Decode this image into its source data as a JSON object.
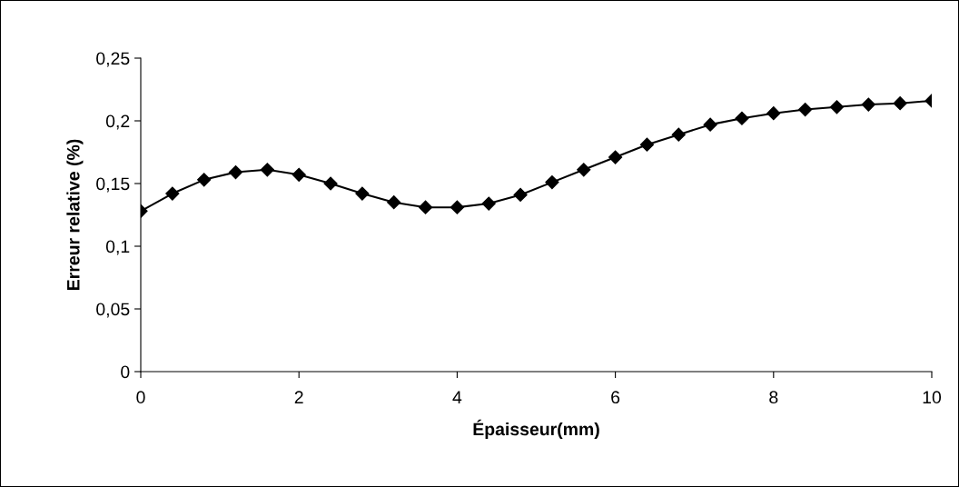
{
  "chart_data": {
    "type": "line",
    "xlabel": "Épaisseur(mm)",
    "ylabel": "Erreur relative (%)",
    "x": [
      0,
      0.4,
      0.8,
      1.2,
      1.6,
      2.0,
      2.4,
      2.8,
      3.2,
      3.6,
      4.0,
      4.4,
      4.8,
      5.2,
      5.6,
      6.0,
      6.4,
      6.8,
      7.2,
      7.6,
      8.0,
      8.4,
      8.8,
      9.2,
      9.6,
      10.0
    ],
    "series": [
      {
        "color": "#000000",
        "values": [
          0.128,
          0.142,
          0.153,
          0.159,
          0.161,
          0.157,
          0.15,
          0.142,
          0.135,
          0.131,
          0.131,
          0.134,
          0.141,
          0.151,
          0.161,
          0.171,
          0.181,
          0.189,
          0.197,
          0.202,
          0.206,
          0.209,
          0.211,
          0.213,
          0.214,
          0.216
        ]
      }
    ],
    "xlim": [
      0,
      10
    ],
    "xticks": [
      0,
      2,
      4,
      6,
      8,
      10
    ],
    "ylim": [
      0,
      0.25
    ],
    "yticks": [
      {
        "value": 0,
        "label": "0"
      },
      {
        "value": 0.05,
        "label": "0,05"
      },
      {
        "value": 0.1,
        "label": "0,1"
      },
      {
        "value": 0.15,
        "label": "0,15"
      },
      {
        "value": 0.2,
        "label": "0,2"
      },
      {
        "value": 0.25,
        "label": "0,25"
      }
    ],
    "grid": false,
    "legend": false,
    "marker": "diamond",
    "line_style": "solid"
  }
}
